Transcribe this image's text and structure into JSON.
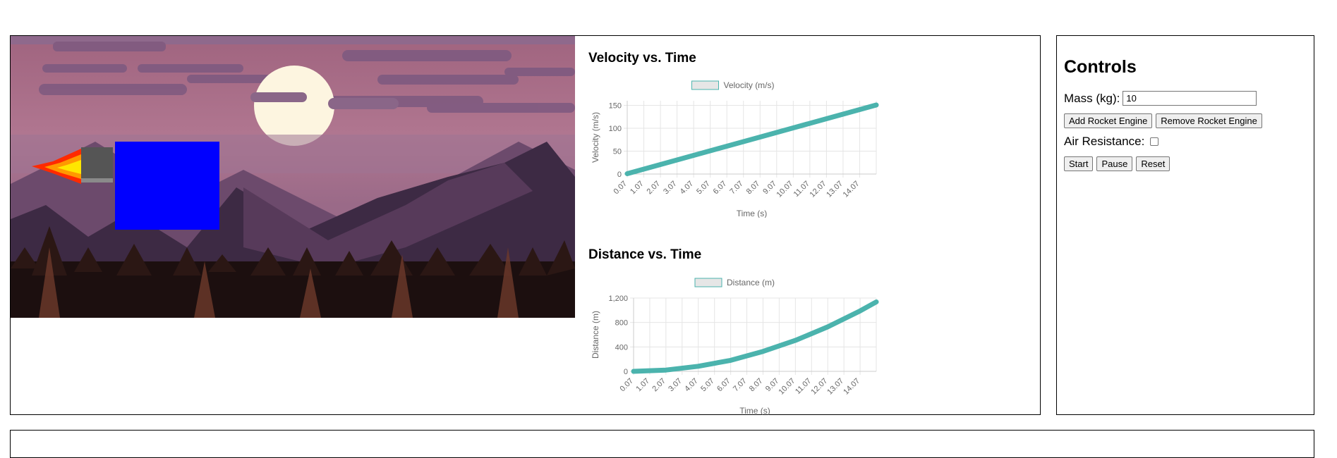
{
  "velocity_chart": {
    "heading": "Velocity vs. Time",
    "chart_data": {
      "type": "line",
      "legend": "Velocity (m/s)",
      "xlabel": "Time (s)",
      "ylabel": "Velocity (m/s)",
      "x_ticks": [
        "0.07",
        "1.07",
        "2.07",
        "3.07",
        "4.07",
        "5.07",
        "6.07",
        "7.07",
        "8.07",
        "9.07",
        "10.07",
        "11.07",
        "12.07",
        "13.07",
        "14.07"
      ],
      "y_ticks": [
        "0",
        "50",
        "100",
        "150"
      ],
      "ylim": [
        0,
        160
      ],
      "xlim": [
        0.07,
        15.07
      ],
      "x": [
        0.07,
        2.07,
        4.07,
        6.07,
        8.07,
        10.07,
        12.07,
        14.07,
        15.07
      ],
      "y": [
        0.7,
        20.7,
        40.7,
        60.7,
        80.7,
        100.7,
        120.7,
        140.7,
        150.7
      ],
      "color": "#4bb3ad"
    }
  },
  "distance_chart": {
    "heading": "Distance vs. Time",
    "chart_data": {
      "type": "line",
      "legend": "Distance (m)",
      "xlabel": "Time (s)",
      "ylabel": "Distance (m)",
      "x_ticks": [
        "0.07",
        "1.07",
        "2.07",
        "3.07",
        "4.07",
        "5.07",
        "6.07",
        "7.07",
        "8.07",
        "9.07",
        "10.07",
        "11.07",
        "12.07",
        "13.07",
        "14.07"
      ],
      "y_ticks": [
        "0",
        "400",
        "800",
        "1,200"
      ],
      "ylim": [
        0,
        1200
      ],
      "xlim": [
        0.07,
        15.07
      ],
      "x": [
        0.07,
        2.07,
        4.07,
        6.07,
        8.07,
        10.07,
        12.07,
        14.07,
        15.07
      ],
      "y": [
        0,
        21,
        83,
        180,
        326,
        507,
        728,
        990,
        1136
      ],
      "color": "#4bb3ad"
    }
  },
  "controls": {
    "title": "Controls",
    "mass_label": "Mass (kg):",
    "mass_value": "10",
    "add_engine": "Add Rocket Engine",
    "remove_engine": "Remove Rocket Engine",
    "air_resistance_label": "Air Resistance:",
    "air_resistance_checked": false,
    "start": "Start",
    "pause": "Pause",
    "reset": "Reset"
  },
  "colors": {
    "sky": "#a86b8a",
    "moon": "#fdf5e0",
    "block": "#0000ff",
    "engine": "#555555",
    "flame": "#ff2a00"
  }
}
